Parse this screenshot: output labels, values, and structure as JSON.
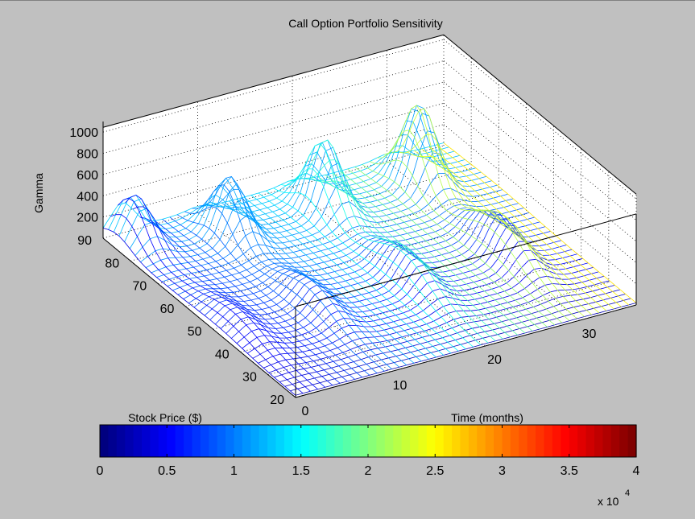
{
  "chart_data": {
    "type": "surface",
    "title": "Call Option Portfolio Sensitivity",
    "xlabel": "Time (months)",
    "ylabel": "Stock Price ($)",
    "zlabel": "Gamma",
    "x_ticks": [
      "0",
      "10",
      "20",
      "30"
    ],
    "y_ticks": [
      "20",
      "30",
      "40",
      "50",
      "60",
      "70",
      "80",
      "90"
    ],
    "z_ticks": [
      "200",
      "400",
      "600",
      "800",
      "1000"
    ],
    "xlim": [
      0,
      36
    ],
    "ylim": [
      20,
      90
    ],
    "zlim": [
      0,
      1100
    ],
    "grid": true,
    "colormap": "jet",
    "colorbar": {
      "orientation": "horizontal",
      "ticks": [
        "0",
        "0.5",
        "1",
        "1.5",
        "2",
        "2.5",
        "3",
        "3.5",
        "4"
      ],
      "range": [
        0,
        40000
      ],
      "exponent_label": "x 10",
      "exponent": "4"
    },
    "peaks": [
      {
        "time": 2,
        "price": 85,
        "gamma": 430
      },
      {
        "time": 10,
        "price": 78,
        "gamma": 550
      },
      {
        "time": 20,
        "price": 78,
        "gamma": 670
      },
      {
        "time": 30,
        "price": 78,
        "gamma": 760
      },
      {
        "time": 2,
        "price": 48,
        "gamma": 150
      },
      {
        "time": 10,
        "price": 48,
        "gamma": 210
      },
      {
        "time": 20,
        "price": 48,
        "gamma": 280
      },
      {
        "time": 30,
        "price": 48,
        "gamma": 360
      }
    ]
  }
}
